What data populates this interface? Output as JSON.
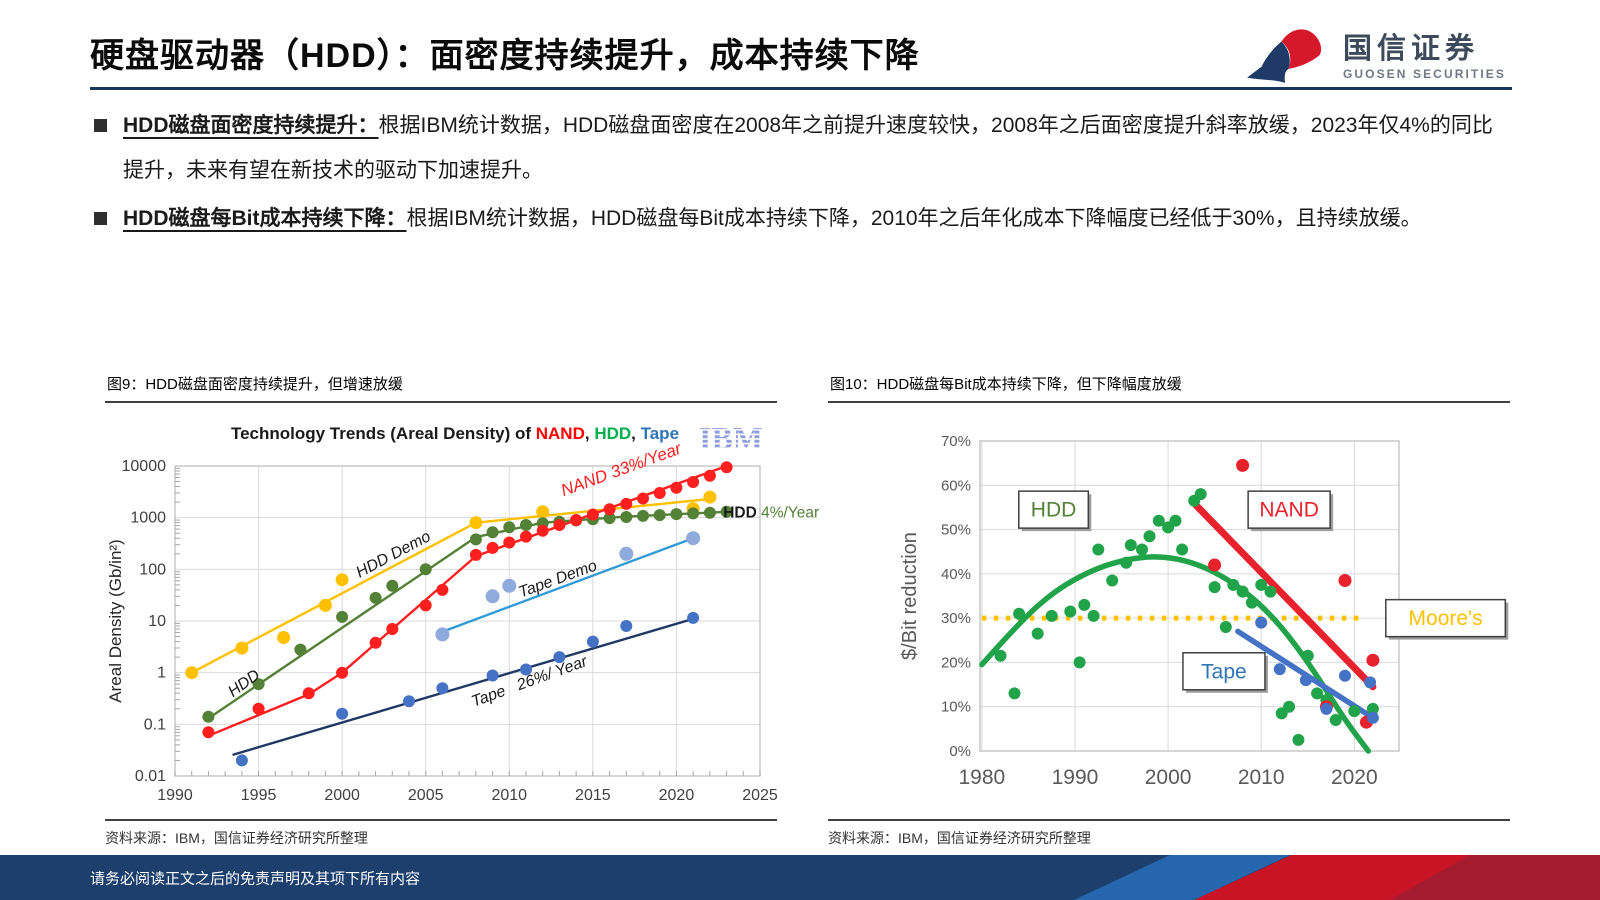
{
  "header": {
    "title": "硬盘驱动器（HDD）：面密度持续提升，成本持续下降",
    "logo_cn": "国信证券",
    "logo_en": "GUOSEN SECURITIES"
  },
  "bullets": [
    {
      "lead": "HDD磁盘面密度持续提升：",
      "text": "根据IBM统计数据，HDD磁盘面密度在2008年之前提升速度较快，2008年之后面密度提升斜率放缓，2023年仅4%的同比提升，未来有望在新技术的驱动下加速提升。"
    },
    {
      "lead": "HDD磁盘每Bit成本持续下降：",
      "text": "根据IBM统计数据，HDD磁盘每Bit成本持续下降，2010年之后年化成本下降幅度已经低于30%，且持续放缓。"
    }
  ],
  "figures": [
    {
      "caption": "图9：HDD磁盘面密度持续提升，但增速放缓",
      "source": "资料来源：IBM，国信证券经济研究所整理"
    },
    {
      "caption": "图10：HDD磁盘每Bit成本持续下降，但下降幅度放缓",
      "source": "资料来源：IBM，国信证券经济研究所整理"
    }
  ],
  "footer": {
    "disclaimer": "请务必阅读正文之后的免责声明及其项下所有内容"
  },
  "chart_data": [
    {
      "type": "scatter",
      "title_parts": [
        {
          "text": "Technology Trends (Areal Density) of ",
          "color": "#1a1a1a"
        },
        {
          "text": "NAND",
          "color": "#ff0000"
        },
        {
          "text": ", ",
          "color": "#1a1a1a"
        },
        {
          "text": "HDD",
          "color": "#00b050"
        },
        {
          "text": ", ",
          "color": "#1a1a1a"
        },
        {
          "text": "Tape",
          "color": "#2e75b6"
        }
      ],
      "watermark": "IBM",
      "ylabel": "Areal Density (Gb/in²)",
      "y_scale": "log",
      "xlim": [
        1990,
        2025
      ],
      "ylim": [
        0.01,
        10000
      ],
      "x_ticks": [
        1990,
        1995,
        2000,
        2005,
        2010,
        2015,
        2020,
        2025
      ],
      "y_ticks": [
        0.01,
        0.1,
        1,
        10,
        100,
        1000,
        10000
      ],
      "series": [
        {
          "name": "HDD Demo",
          "color": "#ffc000",
          "dot_r": 6.5,
          "points": [
            [
              1991,
              1
            ],
            [
              1994,
              3
            ],
            [
              1996.5,
              4.8
            ],
            [
              1999,
              20
            ],
            [
              2000,
              63
            ],
            [
              2008,
              800
            ],
            [
              2012,
              1300
            ],
            [
              2021,
              1500
            ],
            [
              2022,
              2500
            ]
          ],
          "trend": [
            [
              1991,
              1
            ],
            [
              2008,
              800
            ],
            [
              2022,
              2300
            ]
          ]
        },
        {
          "name": "HDD",
          "color": "#538135",
          "dot_r": 6,
          "points": [
            [
              1992,
              0.14
            ],
            [
              1995,
              0.6
            ],
            [
              1997.5,
              2.8
            ],
            [
              2000,
              12
            ],
            [
              2002,
              28
            ],
            [
              2003,
              48
            ],
            [
              2005,
              100
            ],
            [
              2008,
              380
            ],
            [
              2009,
              520
            ],
            [
              2010,
              650
            ],
            [
              2011,
              720
            ],
            [
              2012,
              780
            ],
            [
              2013,
              830
            ],
            [
              2014,
              880
            ],
            [
              2015,
              930
            ],
            [
              2016,
              980
            ],
            [
              2017,
              1030
            ],
            [
              2018,
              1080
            ],
            [
              2019,
              1120
            ],
            [
              2020,
              1170
            ],
            [
              2021,
              1210
            ],
            [
              2022,
              1250
            ],
            [
              2023,
              1300
            ]
          ],
          "trend": [
            [
              1992,
              0.13
            ],
            [
              2008,
              420
            ],
            [
              2012,
              800
            ],
            [
              2017,
              1050
            ],
            [
              2023,
              1300
            ]
          ]
        },
        {
          "name": "NAND",
          "color": "#ff1f1f",
          "dot_r": 6,
          "points": [
            [
              1992,
              0.07
            ],
            [
              1995,
              0.2
            ],
            [
              1998,
              0.4
            ],
            [
              2000,
              1
            ],
            [
              2002,
              3.8
            ],
            [
              2003,
              7
            ],
            [
              2005,
              20
            ],
            [
              2006,
              40
            ],
            [
              2008,
              190
            ],
            [
              2009,
              260
            ],
            [
              2010,
              330
            ],
            [
              2011,
              430
            ],
            [
              2012,
              560
            ],
            [
              2013,
              720
            ],
            [
              2014,
              900
            ],
            [
              2015,
              1150
            ],
            [
              2016,
              1450
            ],
            [
              2017,
              1850
            ],
            [
              2018,
              2350
            ],
            [
              2019,
              3000
            ],
            [
              2020,
              3800
            ],
            [
              2021,
              4900
            ],
            [
              2022,
              6500
            ],
            [
              2023,
              9500
            ]
          ],
          "trend": [
            [
              1992,
              0.06
            ],
            [
              1998,
              0.38
            ],
            [
              2000,
              1
            ],
            [
              2008,
              180
            ],
            [
              2023,
              10000
            ]
          ]
        },
        {
          "name": "Tape Demo",
          "color": "#2e9bd6",
          "dot_color": "#8faadc",
          "dot_r": 7,
          "points": [
            [
              2006,
              5.5
            ],
            [
              2009,
              30
            ],
            [
              2010,
              48
            ],
            [
              2017,
              200
            ],
            [
              2021,
              400
            ]
          ],
          "trend": [
            [
              2006,
              6.2
            ],
            [
              2021,
              400
            ]
          ]
        },
        {
          "name": "Tape",
          "color": "#1f3864",
          "dot_color": "#4472c4",
          "dot_r": 6,
          "points": [
            [
              1994,
              0.02
            ],
            [
              2000,
              0.16
            ],
            [
              2004,
              0.28
            ],
            [
              2006,
              0.5
            ],
            [
              2009,
              0.88
            ],
            [
              2011,
              1.15
            ],
            [
              2013,
              2
            ],
            [
              2015,
              4
            ],
            [
              2017,
              8
            ],
            [
              2021,
              11.5
            ]
          ],
          "trend": [
            [
              1993.5,
              0.026
            ],
            [
              2021,
              11
            ]
          ]
        }
      ],
      "annotations": [
        {
          "text": "NAND 33%/Year",
          "color": "#ff1f1f",
          "x": 2016.8,
          "y": 6800,
          "rotate": -20,
          "italic": true,
          "fs": 17
        },
        {
          "text": "HDD Demo",
          "color": "#1a1a1a",
          "x": 2003.2,
          "y": 160,
          "rotate": -28,
          "italic": true,
          "fs": 16
        },
        {
          "text": "HDD",
          "color": "#1a1a1a",
          "x": 1994.3,
          "y": 0.52,
          "rotate": -36,
          "italic": true,
          "fs": 16
        },
        {
          "text": "Tape Demo",
          "color": "#1a1a1a",
          "x": 2013,
          "y": 53,
          "rotate": -20,
          "italic": true,
          "fs": 16
        },
        {
          "text": "Tape   26%/ Year",
          "color": "#1a1a1a",
          "x": 2011.3,
          "y": 0.55,
          "rotate": -20,
          "italic": true,
          "fs": 16
        },
        {
          "parts": [
            {
              "text": "HDD ",
              "color": "#1a1a1a",
              "bold": true
            },
            {
              "text": "4%/Year",
              "color": "#538135"
            }
          ],
          "x": 2022.8,
          "y": 1000,
          "anchor": "start",
          "fs": 15.5
        }
      ]
    },
    {
      "type": "scatter",
      "ylabel": "$/Bit reduction",
      "y_scale": "linear",
      "y_fmt": "pct",
      "xlim": [
        1979.8,
        2024.8
      ],
      "ylim": [
        0,
        70
      ],
      "x_ticks": [
        1980,
        1990,
        2000,
        2010,
        2020
      ],
      "y_ticks": [
        0,
        10,
        20,
        30,
        40,
        50,
        60,
        70
      ],
      "moores": {
        "y": 30,
        "x1": 1980,
        "x2": 2021,
        "color": "#ffc000",
        "label": "Moore's"
      },
      "series": [
        {
          "name": "HDD",
          "color": "#21a34a",
          "dot_r": 6,
          "line_width": 5.5,
          "points": [
            [
              1982,
              21.5
            ],
            [
              1983.5,
              13
            ],
            [
              1984,
              31
            ],
            [
              1986,
              26.5
            ],
            [
              1987.5,
              30.5
            ],
            [
              1989.5,
              31.5
            ],
            [
              1990.5,
              20
            ],
            [
              1991,
              33
            ],
            [
              1992,
              30.5
            ],
            [
              1992.5,
              45.5
            ],
            [
              1994,
              38.5
            ],
            [
              1995.5,
              42.5
            ],
            [
              1996,
              46.5
            ],
            [
              1997.2,
              45.5
            ],
            [
              1998,
              48.5
            ],
            [
              1999,
              52
            ],
            [
              2000,
              50.5
            ],
            [
              2000.8,
              52
            ],
            [
              2001.5,
              45.5
            ],
            [
              2002.8,
              56.5
            ],
            [
              2003.5,
              58
            ],
            [
              2005,
              37
            ],
            [
              2006.2,
              28
            ],
            [
              2007,
              37.5
            ],
            [
              2008,
              36
            ],
            [
              2009,
              33.5
            ],
            [
              2010,
              37.5
            ],
            [
              2011,
              36
            ],
            [
              2012.2,
              8.5
            ],
            [
              2013,
              10
            ],
            [
              2014,
              2.5
            ],
            [
              2015,
              21.5
            ],
            [
              2016,
              13
            ],
            [
              2017,
              11.5
            ],
            [
              2018,
              7
            ],
            [
              2020,
              9
            ],
            [
              2022,
              9.5
            ]
          ],
          "curve": [
            [
              1980,
              19.5
            ],
            [
              1984,
              29
            ],
            [
              1988,
              36.5
            ],
            [
              1992,
              41
            ],
            [
              1995,
              43
            ],
            [
              1998,
              44
            ],
            [
              2001,
              43.5
            ],
            [
              2004,
              41.5
            ],
            [
              2007,
              38
            ],
            [
              2010,
              33
            ],
            [
              2013,
              26
            ],
            [
              2016,
              17
            ],
            [
              2019,
              7
            ],
            [
              2021.5,
              0
            ]
          ]
        },
        {
          "name": "NAND",
          "color": "#e8222d",
          "dot_r": 6.5,
          "line_width": 7,
          "points": [
            [
              2005,
              42
            ],
            [
              2008,
              64.5
            ],
            [
              2019,
              38.5
            ],
            [
              2022,
              20.5
            ],
            [
              2017,
              10
            ],
            [
              2021.3,
              6.5
            ]
          ],
          "trend": [
            [
              2003,
              55.5
            ],
            [
              2022,
              14.5
            ]
          ]
        },
        {
          "name": "Tape",
          "color": "#4472c4",
          "dot_r": 6,
          "line_width": 5.5,
          "points": [
            [
              2010,
              29
            ],
            [
              2012,
              18.5
            ],
            [
              2014.8,
              16
            ],
            [
              2017,
              9.5
            ],
            [
              2019,
              17
            ],
            [
              2021.7,
              15.5
            ],
            [
              2022,
              7.5
            ]
          ],
          "trend": [
            [
              2007.5,
              27
            ],
            [
              2022,
              7.5
            ]
          ]
        }
      ],
      "label_boxes": [
        {
          "text": "HDD",
          "color": "#538135",
          "x": 1987.7,
          "y": 54.5
        },
        {
          "text": "NAND",
          "color": "#e8222d",
          "x": 2013,
          "y": 54.5
        },
        {
          "text": "Tape",
          "color": "#2e75b6",
          "x": 2006,
          "y": 18
        },
        {
          "text": "Moore's",
          "color": "#ffc000",
          "x": 2029.8,
          "y": 30
        }
      ]
    }
  ]
}
